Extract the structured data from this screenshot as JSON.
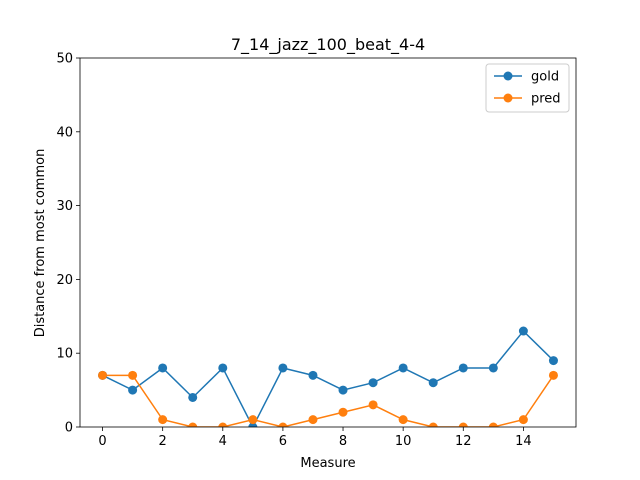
{
  "chart_data": {
    "type": "line",
    "title": "7_14_jazz_100_beat_4-4",
    "xlabel": "Measure",
    "ylabel": "Distance from most common",
    "xlim": [
      -0.75,
      15.75
    ],
    "ylim": [
      0,
      50
    ],
    "xticks": [
      0,
      2,
      4,
      6,
      8,
      10,
      12,
      14
    ],
    "yticks": [
      0,
      10,
      20,
      30,
      40,
      50
    ],
    "x": [
      0,
      1,
      2,
      3,
      4,
      5,
      6,
      7,
      8,
      9,
      10,
      11,
      12,
      13,
      14,
      15
    ],
    "legend_position": "top-right",
    "grid": false,
    "series": [
      {
        "name": "gold",
        "color": "#1f77b4",
        "values": [
          7,
          5,
          8,
          4,
          8,
          0,
          8,
          7,
          5,
          6,
          8,
          6,
          8,
          8,
          13,
          9
        ]
      },
      {
        "name": "pred",
        "color": "#ff7f0e",
        "values": [
          7,
          7,
          1,
          0,
          0,
          1,
          0,
          1,
          2,
          3,
          1,
          0,
          0,
          0,
          1,
          7
        ]
      }
    ]
  }
}
